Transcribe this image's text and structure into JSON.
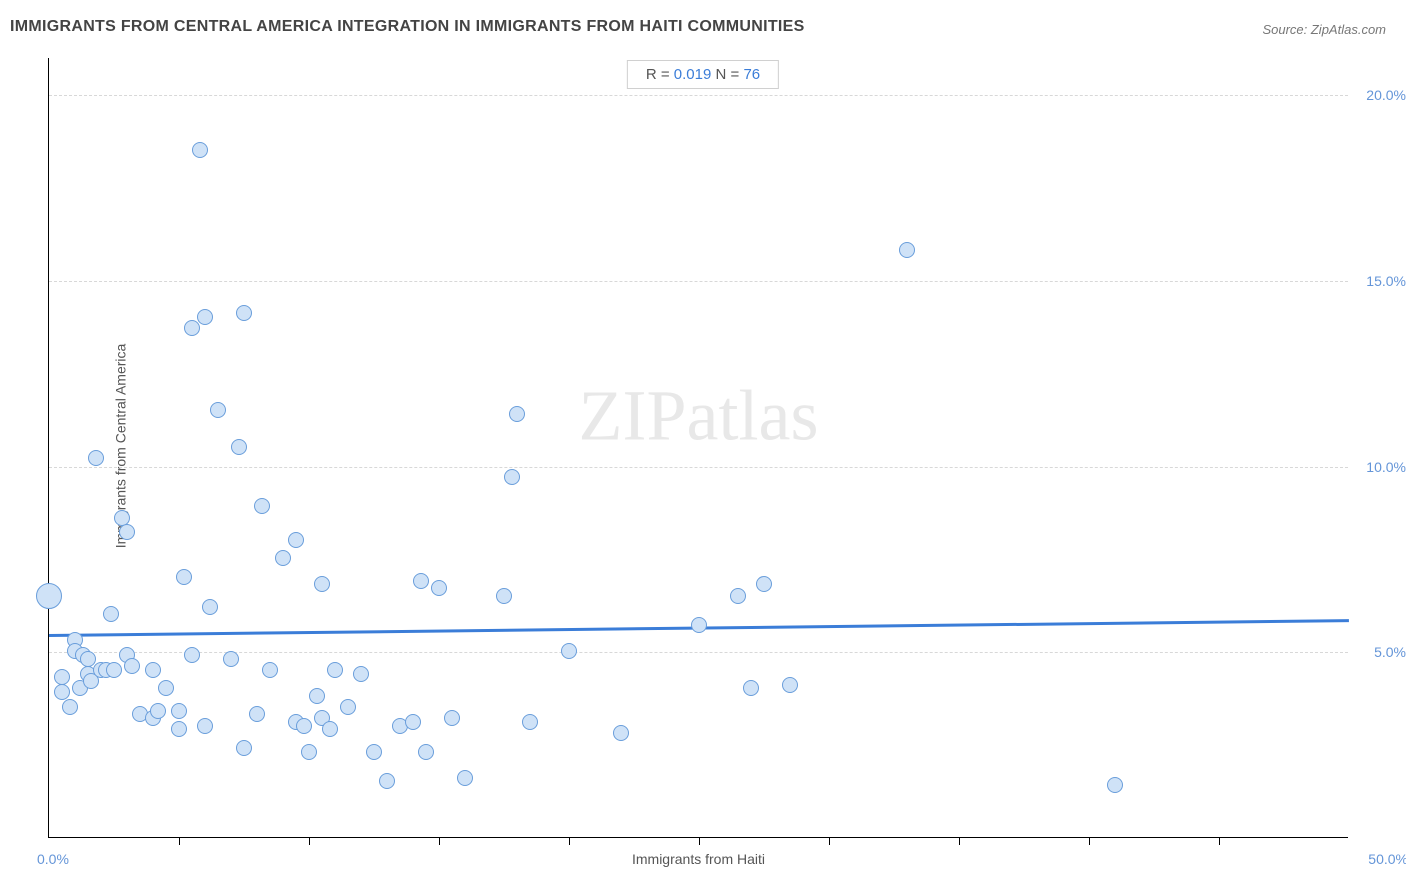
{
  "title": "IMMIGRANTS FROM CENTRAL AMERICA INTEGRATION IN IMMIGRANTS FROM HAITI COMMUNITIES",
  "source": "Source: ZipAtlas.com",
  "watermark_1": "ZIP",
  "watermark_2": "atlas",
  "stats": {
    "r_label": "R = ",
    "r_value": "0.019",
    "n_label": "   N = ",
    "n_value": "76"
  },
  "chart": {
    "type": "scatter",
    "xlabel": "Immigrants from Haiti",
    "ylabel": "Immigrants from Central America",
    "xlim": [
      0,
      50
    ],
    "ylim": [
      0,
      21
    ],
    "x_min_label": "0.0%",
    "x_max_label": "50.0%",
    "yticks": [
      5,
      10,
      15,
      20
    ],
    "ytick_labels": [
      "5.0%",
      "10.0%",
      "15.0%",
      "20.0%"
    ],
    "xticks": [
      5,
      10,
      15,
      20,
      25,
      30,
      35,
      40,
      45
    ],
    "grid_color": "#d8d8d8",
    "point_fill": "#cfe2f7",
    "point_stroke": "#6a9edb",
    "point_radius": 8,
    "big_point_radius": 13,
    "line_color": "#3b7dd8",
    "trend_y_start": 5.5,
    "trend_y_end": 5.9,
    "background": "#ffffff",
    "points": [
      {
        "x": 0.0,
        "y": 6.5,
        "r": 13
      },
      {
        "x": 0.5,
        "y": 4.3
      },
      {
        "x": 0.5,
        "y": 3.9
      },
      {
        "x": 0.8,
        "y": 3.5
      },
      {
        "x": 1.0,
        "y": 5.3
      },
      {
        "x": 1.0,
        "y": 5.0
      },
      {
        "x": 1.2,
        "y": 4.0
      },
      {
        "x": 1.3,
        "y": 4.9
      },
      {
        "x": 1.5,
        "y": 4.8
      },
      {
        "x": 1.5,
        "y": 4.4
      },
      {
        "x": 1.6,
        "y": 4.2
      },
      {
        "x": 1.8,
        "y": 10.2
      },
      {
        "x": 2.0,
        "y": 4.5
      },
      {
        "x": 2.2,
        "y": 4.5
      },
      {
        "x": 2.4,
        "y": 6.0
      },
      {
        "x": 2.5,
        "y": 4.5
      },
      {
        "x": 2.8,
        "y": 8.6
      },
      {
        "x": 3.0,
        "y": 8.2
      },
      {
        "x": 3.0,
        "y": 4.9
      },
      {
        "x": 3.2,
        "y": 4.6
      },
      {
        "x": 3.5,
        "y": 3.3
      },
      {
        "x": 4.0,
        "y": 4.5
      },
      {
        "x": 4.0,
        "y": 3.2
      },
      {
        "x": 4.2,
        "y": 3.4
      },
      {
        "x": 4.5,
        "y": 4.0
      },
      {
        "x": 5.0,
        "y": 3.4
      },
      {
        "x": 5.0,
        "y": 2.9
      },
      {
        "x": 5.2,
        "y": 7.0
      },
      {
        "x": 5.5,
        "y": 13.7
      },
      {
        "x": 5.5,
        "y": 4.9
      },
      {
        "x": 5.8,
        "y": 18.5
      },
      {
        "x": 6.0,
        "y": 14.0
      },
      {
        "x": 6.0,
        "y": 3.0
      },
      {
        "x": 6.2,
        "y": 6.2
      },
      {
        "x": 6.5,
        "y": 11.5
      },
      {
        "x": 7.0,
        "y": 4.8
      },
      {
        "x": 7.3,
        "y": 10.5
      },
      {
        "x": 7.5,
        "y": 14.1
      },
      {
        "x": 7.5,
        "y": 2.4
      },
      {
        "x": 8.0,
        "y": 3.3
      },
      {
        "x": 8.2,
        "y": 8.9
      },
      {
        "x": 8.5,
        "y": 4.5
      },
      {
        "x": 9.0,
        "y": 7.5
      },
      {
        "x": 9.5,
        "y": 8.0
      },
      {
        "x": 9.5,
        "y": 3.1
      },
      {
        "x": 9.8,
        "y": 3.0
      },
      {
        "x": 10.0,
        "y": 2.3
      },
      {
        "x": 10.3,
        "y": 3.8
      },
      {
        "x": 10.5,
        "y": 6.8
      },
      {
        "x": 10.5,
        "y": 3.2
      },
      {
        "x": 10.8,
        "y": 2.9
      },
      {
        "x": 11.0,
        "y": 4.5
      },
      {
        "x": 11.5,
        "y": 3.5
      },
      {
        "x": 12.0,
        "y": 4.4
      },
      {
        "x": 12.5,
        "y": 2.3
      },
      {
        "x": 13.0,
        "y": 1.5
      },
      {
        "x": 13.5,
        "y": 3.0
      },
      {
        "x": 14.0,
        "y": 3.1
      },
      {
        "x": 14.3,
        "y": 6.9
      },
      {
        "x": 14.5,
        "y": 2.3
      },
      {
        "x": 15.0,
        "y": 6.7
      },
      {
        "x": 15.5,
        "y": 3.2
      },
      {
        "x": 16.0,
        "y": 1.6
      },
      {
        "x": 17.5,
        "y": 6.5
      },
      {
        "x": 17.8,
        "y": 9.7
      },
      {
        "x": 18.0,
        "y": 11.4
      },
      {
        "x": 18.5,
        "y": 3.1
      },
      {
        "x": 20.0,
        "y": 5.0
      },
      {
        "x": 22.0,
        "y": 2.8
      },
      {
        "x": 25.0,
        "y": 5.7
      },
      {
        "x": 26.5,
        "y": 6.5
      },
      {
        "x": 27.0,
        "y": 4.0
      },
      {
        "x": 27.5,
        "y": 6.8
      },
      {
        "x": 28.5,
        "y": 4.1
      },
      {
        "x": 33.0,
        "y": 15.8
      },
      {
        "x": 41.0,
        "y": 1.4
      }
    ]
  }
}
